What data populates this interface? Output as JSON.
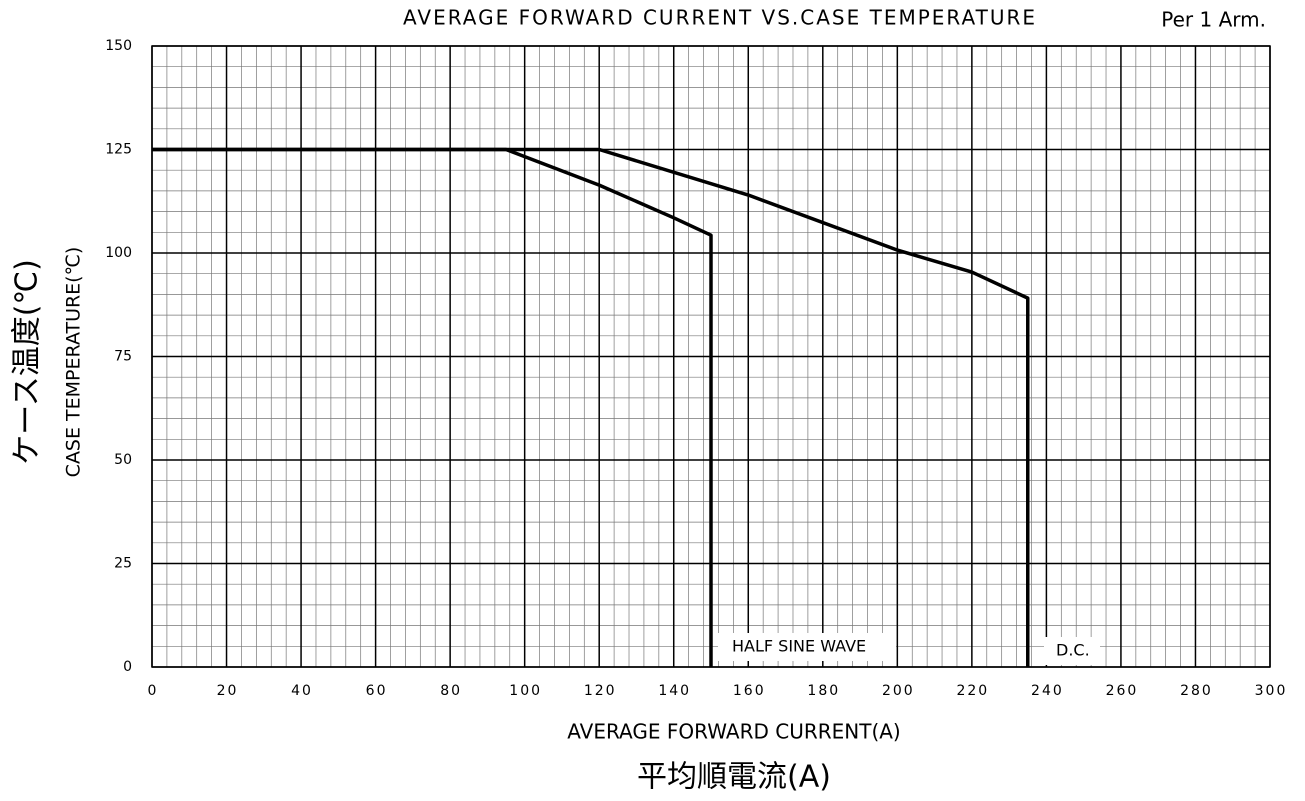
{
  "chart_data": {
    "type": "line",
    "title": "AVERAGE FORWARD CURRENT VS.CASE TEMPERATURE",
    "subtitle": "Per 1 Arm.",
    "x_label": "AVERAGE FORWARD CURRENT(A)",
    "x_label_jp": "平均順電流(A)",
    "y_label": "CASE TEMPERATURE(℃)",
    "y_label_jp": "ケース温度(℃)",
    "annotations": [
      "HALF SINE WAVE",
      "D.C."
    ],
    "xlim": [
      0,
      300
    ],
    "xticks": [
      0,
      20,
      40,
      60,
      80,
      100,
      120,
      140,
      160,
      180,
      200,
      220,
      240,
      260,
      280,
      300
    ],
    "ylim": [
      0,
      150
    ],
    "yticks": [
      0,
      25,
      50,
      75,
      100,
      125,
      150
    ],
    "grid": true,
    "x_minor_step": 4,
    "y_minor_step": 5,
    "series": [
      {
        "name": "HALF SINE WAVE",
        "color": "#000000",
        "x": [
          0,
          95,
          120,
          140,
          150,
          150
        ],
        "values": [
          125,
          125,
          116.4,
          108.5,
          104.3,
          0
        ]
      },
      {
        "name": "D.C.",
        "color": "#000000",
        "x": [
          0,
          120,
          160,
          200,
          220,
          235,
          235
        ],
        "values": [
          125,
          125,
          114,
          100.7,
          95.4,
          89.1,
          0
        ]
      }
    ]
  }
}
